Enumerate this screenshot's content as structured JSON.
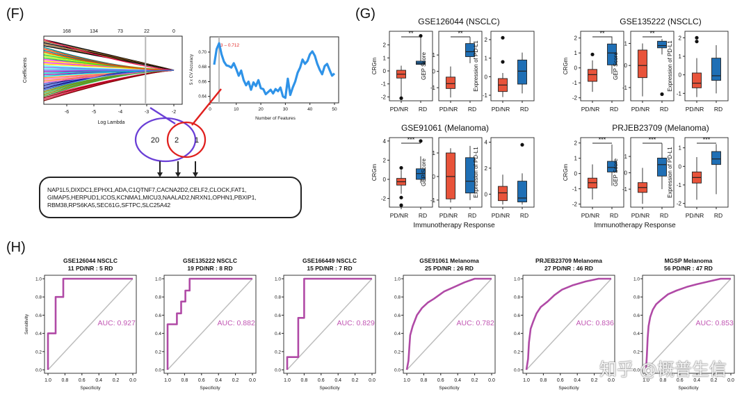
{
  "panels": {
    "F": {
      "label": "(F)",
      "lasso": {
        "ylabel": "Coefficients",
        "xlabel": "Log Lambda",
        "top_ticks": [
          "168",
          "134",
          "73",
          "22",
          "0"
        ],
        "x_ticks": [
          "-6",
          "-5",
          "-4",
          "-3",
          "-2"
        ]
      },
      "cv": {
        "ylabel": "5 x CV Accuracy",
        "xlabel": "Number of Features",
        "annotation": "3 – 0.712",
        "y_ticks": [
          "0.70",
          "0.68",
          "0.66",
          "0.64"
        ],
        "x_ticks": [
          "0",
          "10",
          "20",
          "30",
          "40",
          "50"
        ],
        "values": [
          0.683,
          0.704,
          0.712,
          0.697,
          0.687,
          0.682,
          0.681,
          0.679,
          0.685,
          0.677,
          0.668,
          0.675,
          0.662,
          0.655,
          0.66,
          0.649,
          0.659,
          0.654,
          0.662,
          0.651,
          0.65,
          0.643,
          0.646,
          0.649,
          0.644,
          0.65,
          0.647,
          0.652,
          0.64,
          0.638,
          0.664,
          0.642,
          0.652,
          0.66,
          0.672,
          0.679,
          0.69,
          0.684,
          0.688,
          0.697,
          0.701,
          0.695,
          0.684,
          0.676,
          0.67,
          0.681,
          0.684,
          0.676,
          0.668,
          0.671
        ]
      },
      "venn": {
        "left": "20",
        "middle": "2",
        "right": "1"
      },
      "genes": [
        "NAP1L5,DIXDC1,EPHX1,ADA,C1QTNF7,CACNA2D2,CELF2,CLOCK,FAT1,",
        "GIMAP5,HERPUD1,ICOS,KCNMA1,MICU3,NAALAD2,NRXN1,OPHN1,PBXIP1,",
        "RBM38,RPS6KA5,SEC61G,SFTPC,SLC25A42"
      ]
    },
    "G": {
      "label": "(G)",
      "response_label": "Immunotherapy Response",
      "groups": [
        "PD/NR",
        "RD"
      ],
      "cohorts": [
        {
          "title": "GSE126044 (NSCLC)",
          "plots": [
            {
              "ylabel": "CRGm",
              "sig": "**",
              "ticks": [
                -2,
                -1,
                0,
                1,
                2
              ],
              "box_nr": [
                -2.1,
                -0.55,
                -0.25,
                0.05,
                0.4
              ],
              "box_rd": [
                0.45,
                0.5,
                0.6,
                0.75,
                2.7
              ],
              "outliers_nr": [
                -2.1
              ],
              "outliers_rd": [
                2.7
              ]
            },
            {
              "ylabel": "GEP Score",
              "sig": "**",
              "ticks": [
                -1,
                0,
                1
              ],
              "box_nr": [
                -1.6,
                -1.05,
                -0.75,
                -0.35,
                0.3
              ],
              "box_rd": [
                0.5,
                0.9,
                1.2,
                1.7,
                2.1
              ],
              "outliers_nr": [],
              "outliers_rd": []
            },
            {
              "ylabel": "Expression of PD-L1",
              "sig": "",
              "ticks": [
                -1,
                0,
                1,
                2
              ],
              "box_nr": [
                -1.1,
                -0.8,
                -0.45,
                -0.1,
                0.2
              ],
              "box_rd": [
                -0.9,
                -0.4,
                0.3,
                0.9,
                1.3
              ],
              "outliers_nr": [
                2.1,
                0.8
              ],
              "outliers_rd": []
            }
          ]
        },
        {
          "title": "GSE135222 (NSCLC)",
          "plots": [
            {
              "ylabel": "CRGm",
              "sig": "**",
              "ticks": [
                -2,
                -1,
                0,
                1,
                2
              ],
              "box_nr": [
                -1.6,
                -0.9,
                -0.45,
                -0.1,
                0.5
              ],
              "box_rd": [
                -0.4,
                0.2,
                1.0,
                1.6,
                2.1
              ],
              "outliers_nr": [
                0.9
              ],
              "outliers_rd": []
            },
            {
              "ylabel": "GEP Score",
              "sig": "**",
              "ticks": [
                -1,
                0,
                1
              ],
              "box_nr": [
                -1.4,
                -0.55,
                0.0,
                0.7,
                1.0
              ],
              "box_rd": [
                0.5,
                0.8,
                0.9,
                1.1,
                1.2
              ],
              "outliers_nr": [],
              "outliers_rd": [
                -1.3
              ]
            },
            {
              "ylabel": "Expression of PD-L1",
              "sig": "",
              "ticks": [
                -1,
                0,
                1,
                2
              ],
              "box_nr": [
                -1.2,
                -0.7,
                -0.45,
                0.1,
                0.9
              ],
              "box_rd": [
                -1.0,
                -0.3,
                -0.05,
                0.9,
                1.6
              ],
              "outliers_nr": [
                2.0,
                1.8
              ],
              "outliers_rd": []
            }
          ]
        },
        {
          "title": "GSE91061 (Melanoma)",
          "plots": [
            {
              "ylabel": "CRGm",
              "sig": "***",
              "ticks": [
                -2,
                0,
                2,
                4
              ],
              "box_nr": [
                -1.5,
                -0.6,
                -0.25,
                0.1,
                1.0
              ],
              "box_rd": [
                -0.4,
                0.0,
                0.6,
                1.1,
                2.4
              ],
              "outliers_nr": [
                -2.7,
                -1.9,
                1.2
              ],
              "outliers_rd": [
                4.0
              ]
            },
            {
              "ylabel": "GEP Score",
              "sig": "",
              "ticks": [
                -1,
                0,
                1
              ],
              "box_nr": [
                -1.1,
                -0.95,
                0.0,
                1.0,
                1.2
              ],
              "box_rd": [
                -1.0,
                -0.7,
                -0.2,
                0.8,
                1.3
              ],
              "outliers_nr": [],
              "outliers_rd": []
            },
            {
              "ylabel": "Expression of PD-L1",
              "sig": "",
              "ticks": [
                0,
                2,
                4
              ],
              "box_nr": [
                -0.8,
                -0.5,
                0.1,
                0.6,
                1.5
              ],
              "box_rd": [
                -0.8,
                -0.6,
                -0.3,
                1.0,
                1.6
              ],
              "outliers_nr": [],
              "outliers_rd": [
                3.8
              ]
            }
          ]
        },
        {
          "title": "PRJEB23709 (Melanoma)",
          "plots": [
            {
              "ylabel": "CRGm",
              "sig": "***",
              "ticks": [
                -2,
                -1,
                0,
                1,
                2
              ],
              "box_nr": [
                -1.7,
                -0.95,
                -0.6,
                -0.3,
                0.6
              ],
              "box_rd": [
                -0.8,
                0.1,
                0.4,
                0.8,
                1.9
              ],
              "outliers_nr": [],
              "outliers_rd": []
            },
            {
              "ylabel": "GEP Score",
              "sig": "***",
              "ticks": [
                -1,
                0,
                1
              ],
              "box_nr": [
                -1.9,
                -1.2,
                -0.9,
                -0.6,
                0.3
              ],
              "box_rd": [
                -1.0,
                -0.2,
                0.5,
                0.9,
                1.8
              ],
              "outliers_nr": [],
              "outliers_rd": []
            },
            {
              "ylabel": "Expression of PD-L1",
              "sig": "***",
              "ticks": [
                -2,
                -1,
                0,
                1
              ],
              "box_nr": [
                -1.8,
                -0.9,
                -0.6,
                -0.3,
                0.5
              ],
              "box_rd": [
                -1.5,
                0.1,
                0.4,
                0.8,
                1.2
              ],
              "outliers_nr": [],
              "outliers_rd": []
            }
          ]
        }
      ]
    },
    "H": {
      "label": "(H)",
      "xlabel": "Specificity",
      "ylabel": "Sensitivity",
      "x_ticks": [
        "1.0",
        "0.8",
        "0.6",
        "0.4",
        "0.2",
        "0.0"
      ],
      "y_ticks": [
        "0.0",
        "0.2",
        "0.4",
        "0.6",
        "0.8",
        "1.0"
      ],
      "auc_color": "#c155b3",
      "curves": [
        {
          "title": "GSE126044 NSCLC",
          "counts": "11 PD/NR : 5 RD",
          "auc": "AUC: 0.927",
          "pts": [
            [
              1,
              0
            ],
            [
              1,
              0.4
            ],
            [
              0.91,
              0.4
            ],
            [
              0.91,
              0.8
            ],
            [
              0.82,
              0.8
            ],
            [
              0.82,
              1
            ],
            [
              0,
              1
            ]
          ]
        },
        {
          "title": "GSE135222 NSCLC",
          "counts": "19 PD/NR : 8 RD",
          "auc": "AUC: 0.882",
          "pts": [
            [
              1,
              0
            ],
            [
              1,
              0.5
            ],
            [
              0.89,
              0.5
            ],
            [
              0.89,
              0.62
            ],
            [
              0.84,
              0.62
            ],
            [
              0.84,
              0.75
            ],
            [
              0.79,
              0.75
            ],
            [
              0.79,
              0.87
            ],
            [
              0.74,
              0.87
            ],
            [
              0.74,
              1
            ],
            [
              0,
              1
            ]
          ]
        },
        {
          "title": "GSE166449 NSCLC",
          "counts": "15 PD/NR : 7 RD",
          "auc": "AUC: 0.829",
          "pts": [
            [
              1,
              0
            ],
            [
              1,
              0.14
            ],
            [
              0.87,
              0.14
            ],
            [
              0.87,
              0.57
            ],
            [
              0.8,
              0.57
            ],
            [
              0.8,
              1
            ],
            [
              0,
              1
            ]
          ]
        },
        {
          "title": "GSE91061 Melanoma",
          "counts": "25 PD/NR : 26 RD",
          "auc": "AUC: 0.782",
          "pts": [
            [
              1,
              0
            ],
            [
              0.98,
              0.1
            ],
            [
              0.97,
              0.25
            ],
            [
              0.96,
              0.38
            ],
            [
              0.93,
              0.48
            ],
            [
              0.88,
              0.6
            ],
            [
              0.82,
              0.68
            ],
            [
              0.75,
              0.74
            ],
            [
              0.68,
              0.78
            ],
            [
              0.56,
              0.86
            ],
            [
              0.44,
              0.91
            ],
            [
              0.32,
              0.96
            ],
            [
              0.2,
              1
            ],
            [
              0,
              1
            ]
          ]
        },
        {
          "title": "PRJEB23709 Melanoma",
          "counts": "27 PD/NR : 46 RD",
          "auc": "AUC: 0.836",
          "pts": [
            [
              1,
              0
            ],
            [
              0.98,
              0.12
            ],
            [
              0.97,
              0.3
            ],
            [
              0.95,
              0.45
            ],
            [
              0.92,
              0.53
            ],
            [
              0.88,
              0.62
            ],
            [
              0.83,
              0.69
            ],
            [
              0.75,
              0.75
            ],
            [
              0.67,
              0.82
            ],
            [
              0.58,
              0.88
            ],
            [
              0.45,
              0.93
            ],
            [
              0.3,
              0.97
            ],
            [
              0.15,
              1
            ],
            [
              0,
              1
            ]
          ]
        },
        {
          "title": "MGSP Melanoma",
          "counts": "56 PD/NR : 47 RD",
          "auc": "AUC: 0.853",
          "pts": [
            [
              1,
              0
            ],
            [
              0.99,
              0.15
            ],
            [
              0.98,
              0.35
            ],
            [
              0.97,
              0.48
            ],
            [
              0.95,
              0.58
            ],
            [
              0.92,
              0.66
            ],
            [
              0.88,
              0.72
            ],
            [
              0.82,
              0.77
            ],
            [
              0.74,
              0.83
            ],
            [
              0.64,
              0.87
            ],
            [
              0.52,
              0.91
            ],
            [
              0.4,
              0.94
            ],
            [
              0.26,
              0.97
            ],
            [
              0.12,
              1
            ],
            [
              0,
              1
            ]
          ]
        }
      ]
    }
  },
  "watermark": "知乎 @概普生信",
  "colors": {
    "nr": "#e8533a",
    "rd": "#1f6fb5",
    "lasso_line": "#b7b7b7",
    "cv_line": "#2f93e8",
    "venn_left": "#6a3fd6",
    "venn_right": "#e0201e",
    "roc": "#b04aa6",
    "diag": "#bdbdbd"
  }
}
